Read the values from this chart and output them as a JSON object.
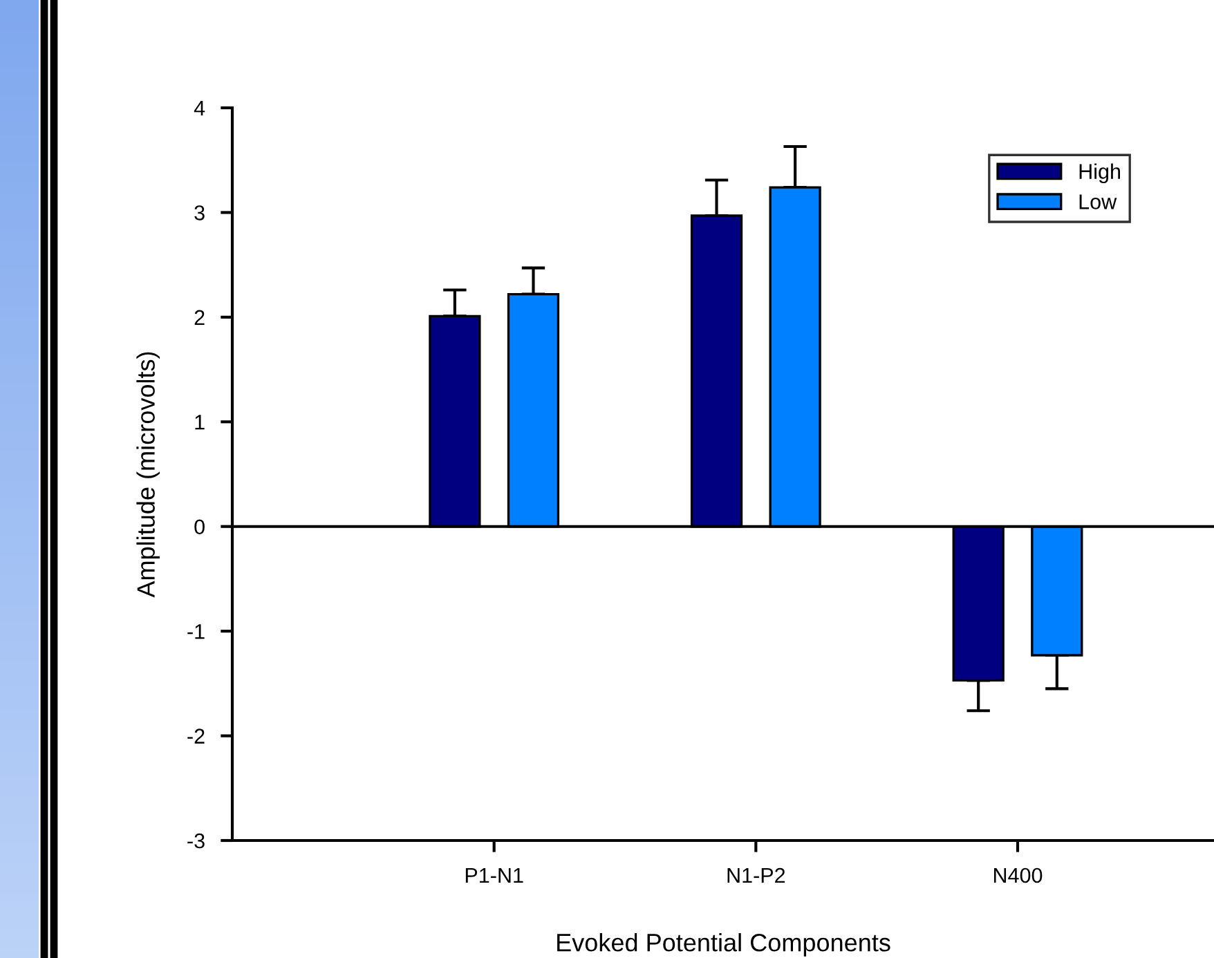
{
  "chart_data": {
    "type": "bar",
    "xlabel": "Evoked Potential Components",
    "ylabel": "Amplitude (microvolts)",
    "categories": [
      "P1-N1",
      "N1-P2",
      "N400"
    ],
    "series": [
      {
        "name": "High",
        "color": "#000080",
        "values": [
          2.01,
          2.97,
          -1.47
        ],
        "errors": [
          [
            2.01,
            2.26
          ],
          [
            2.97,
            3.31
          ],
          [
            -1.76,
            -1.47
          ]
        ]
      },
      {
        "name": "Low",
        "color": "#0080ff",
        "values": [
          2.22,
          3.24,
          -1.23
        ],
        "errors": [
          [
            2.22,
            2.47
          ],
          [
            3.24,
            3.63
          ],
          [
            -1.55,
            -1.23
          ]
        ]
      }
    ],
    "ylim": [
      -3,
      4
    ],
    "yticks": [
      -3,
      -2,
      -1,
      0,
      1,
      2,
      3,
      4
    ],
    "ref_lines": [
      {
        "axis": "y",
        "value": 0,
        "color": "#000000",
        "line_style": "solid"
      }
    ],
    "grid": false,
    "legend": "top right"
  }
}
